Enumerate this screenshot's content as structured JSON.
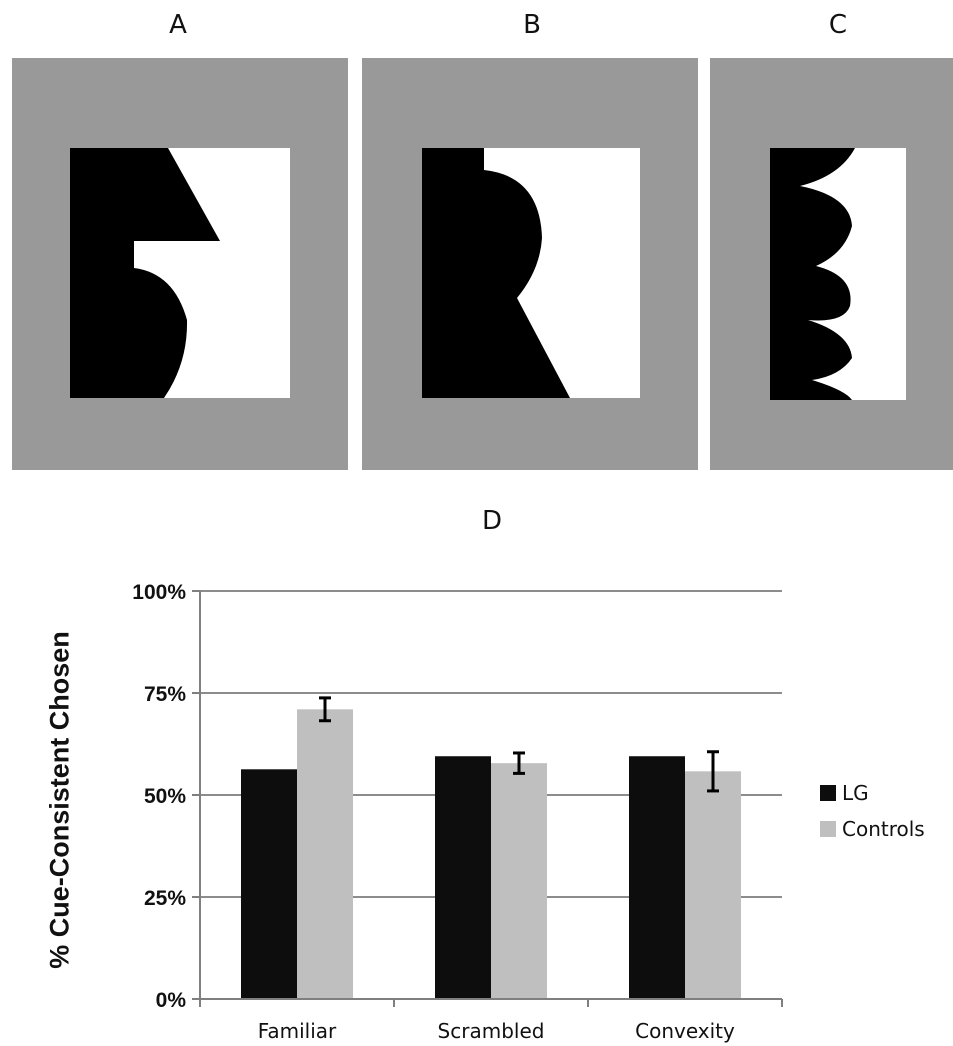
{
  "panels": {
    "a_label": "A",
    "b_label": "B",
    "c_label": "C",
    "d_label": "D"
  },
  "colors": {
    "stimulus_background": "#999999",
    "figure_black": "#000000",
    "figure_white": "#ffffff",
    "lg": "#0d0d0d",
    "controls": "#bfbfbf"
  },
  "chart_data": {
    "type": "bar",
    "title": "",
    "xlabel": "",
    "ylabel": "% Cue-Consistent Chosen",
    "categories": [
      "Familiar",
      "Scrambled",
      "Convexity"
    ],
    "series": [
      {
        "name": "LG",
        "values": [
          56.3,
          59.5,
          59.5
        ],
        "color": "#0d0d0d"
      },
      {
        "name": "Controls",
        "values": [
          71.0,
          57.8,
          55.8
        ],
        "errors": [
          2.8,
          2.5,
          4.8
        ],
        "color": "#bfbfbf"
      }
    ],
    "ylim": [
      0,
      100
    ],
    "yticks": [
      "0%",
      "25%",
      "50%",
      "75%",
      "100%"
    ],
    "ytick_values": [
      0,
      25,
      50,
      75,
      100
    ],
    "grid": true,
    "legend": "right"
  }
}
